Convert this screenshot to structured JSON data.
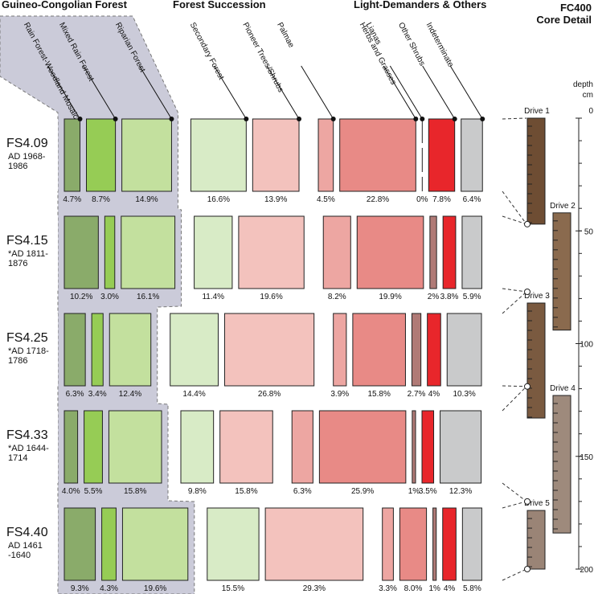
{
  "chart_data": {
    "type": "proportion-boxes",
    "title": "FC400",
    "subtitle": "Core Detail",
    "y_label": "depth",
    "y_unit": "cm",
    "ylim": [
      0,
      200
    ],
    "yticks": [
      0,
      50,
      100,
      150,
      200
    ],
    "groups": [
      {
        "name": "Guineo-Congolian Forest",
        "series": [
          {
            "name": "Rain Forest-Woodland Mosaic",
            "color": "#8aab6a",
            "values": [
              4.7,
              10.2,
              6.3,
              4.0,
              9.3
            ],
            "value_labels": [
              "4.7%",
              "10.2%",
              "6.3%",
              "4.0%",
              "9.3%"
            ]
          },
          {
            "name": "Mixed Rain Forest",
            "color": "#96cc55",
            "values": [
              8.7,
              3.0,
              3.4,
              5.5,
              4.3
            ],
            "value_labels": [
              "8.7%",
              "3.0%",
              "3.4%",
              "5.5%",
              "4.3%"
            ]
          },
          {
            "name": "Riparian Forest",
            "color": "#c3e09e",
            "values": [
              14.9,
              16.1,
              12.4,
              15.8,
              19.6
            ],
            "value_labels": [
              "14.9%",
              "16.1%",
              "12.4%",
              "15.8%",
              "19.6%"
            ]
          }
        ]
      },
      {
        "name": "Forest Succession",
        "series": [
          {
            "name": "Secondary Forest",
            "color": "#d8ebc6",
            "values": [
              16.6,
              11.4,
              14.4,
              9.8,
              15.5
            ],
            "value_labels": [
              "16.6%",
              "11.4%",
              "14.4%",
              "9.8%",
              "15.5%"
            ]
          },
          {
            "name": "Pioneer Trees/Shrubs",
            "color": "#f3c2bd",
            "values": [
              13.9,
              19.6,
              26.8,
              15.8,
              29.3
            ],
            "value_labels": [
              "13.9%",
              "19.6%",
              "26.8%",
              "15.8%",
              "29.3%"
            ]
          }
        ]
      },
      {
        "name": "Light-Demanders & Others",
        "series": [
          {
            "name": "Palmae",
            "color": "#eda6a2",
            "values": [
              4.5,
              8.2,
              3.9,
              6.3,
              3.3
            ],
            "value_labels": [
              "4.5%",
              "8.2%",
              "3.9%",
              "6.3%",
              "3.3%"
            ]
          },
          {
            "name": "Herbs and Grasses",
            "color": "#e88a86",
            "values": [
              22.8,
              19.9,
              15.8,
              25.9,
              8.0
            ],
            "value_labels": [
              "22.8%",
              "19.9%",
              "15.8%",
              "25.9%",
              "8.0%"
            ]
          },
          {
            "name": "Lianas",
            "color": "#b07a76",
            "values": [
              0,
              2,
              2.7,
              1,
              1
            ],
            "value_labels": [
              "0%",
              "2%",
              "2.7%",
              "1%",
              "1%"
            ]
          },
          {
            "name": "Other Shrubs",
            "color": "#e8262b",
            "values": [
              7.8,
              3.8,
              4,
              3.5,
              4
            ],
            "value_labels": [
              "7.8%",
              "3.8%",
              "4%",
              "3.5%",
              "4%"
            ]
          },
          {
            "name": "Indeterminate",
            "color": "#c9cacb",
            "values": [
              6.4,
              5.9,
              10.3,
              12.3,
              5.8
            ],
            "value_labels": [
              "6.4%",
              "5.9%",
              "10.3%",
              "12.3%",
              "5.8%"
            ]
          }
        ]
      }
    ],
    "samples": [
      {
        "label": "FS4.09",
        "date": [
          "AD 1968-",
          "1986"
        ],
        "depth": [
          0,
          47
        ]
      },
      {
        "label": "FS4.15",
        "date": [
          "*AD 1811-",
          "1876"
        ],
        "depth": [
          47,
          77
        ]
      },
      {
        "label": "FS4.25",
        "date": [
          "*AD 1718-",
          "1786"
        ],
        "depth": [
          77,
          119
        ]
      },
      {
        "label": "FS4.33",
        "date": [
          "*AD 1644-",
          "1714"
        ],
        "depth": [
          119,
          170
        ]
      },
      {
        "label": "FS4.40",
        "date": [
          "AD 1461",
          "-1640"
        ],
        "depth": [
          170,
          200
        ]
      }
    ],
    "drives": [
      {
        "name": "Drive 1",
        "depth": [
          0,
          47
        ],
        "color": "#6e4d33"
      },
      {
        "name": "Drive 2",
        "depth": [
          42,
          94
        ],
        "color": "#8a6a4e"
      },
      {
        "name": "Drive 3",
        "depth": [
          82,
          133
        ],
        "color": "#7a5a40"
      },
      {
        "name": "Drive 4",
        "depth": [
          123,
          184
        ],
        "color": "#9e8a7c"
      },
      {
        "name": "Drive 5",
        "depth": [
          174,
          200
        ],
        "color": "#9a8476"
      }
    ]
  }
}
